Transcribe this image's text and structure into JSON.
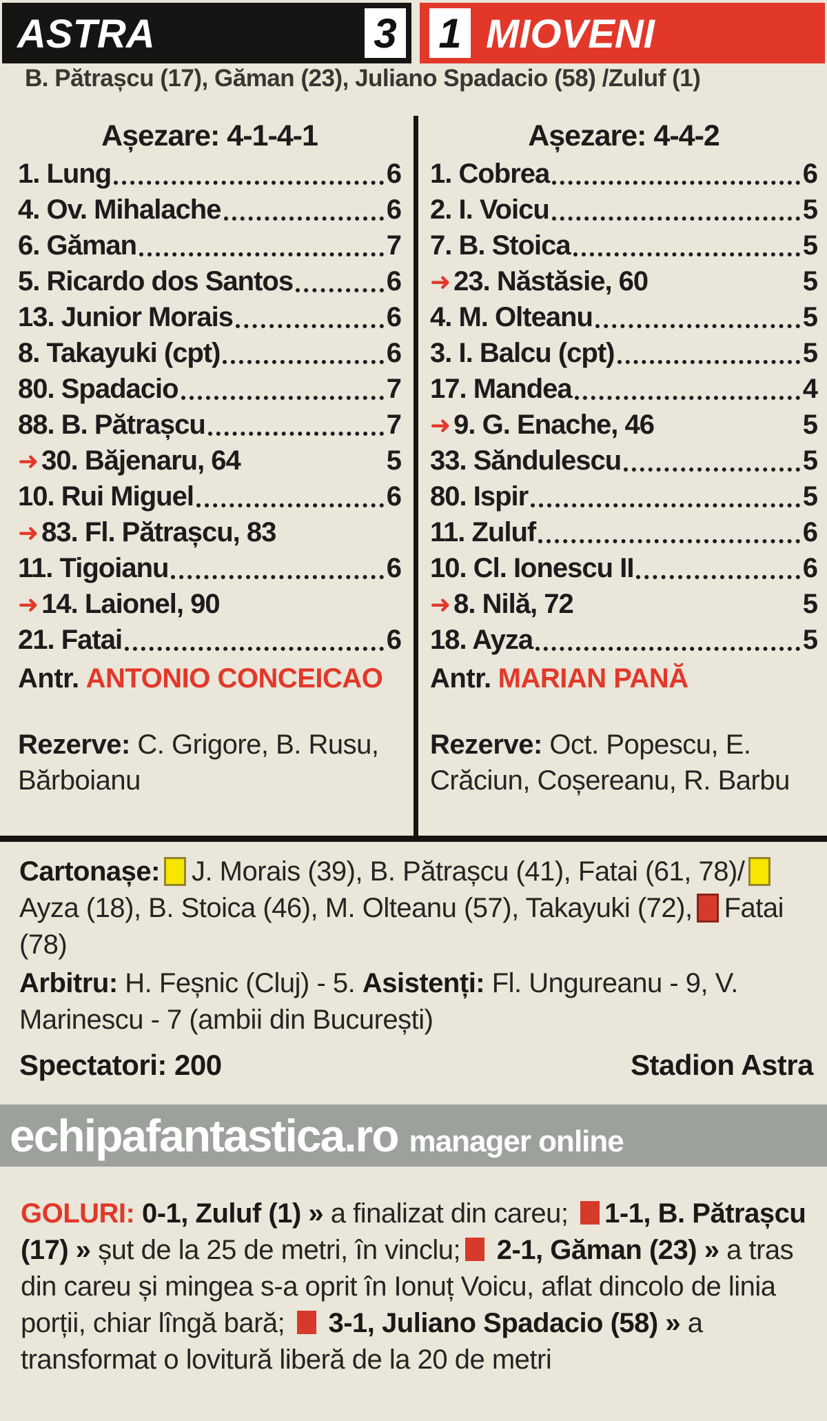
{
  "header": {
    "home": "ASTRA",
    "home_score": "3",
    "away": "MIOVENI",
    "away_score": "1",
    "scorers": "B. Pătrașcu (17), Găman (23), Juliano Spadacio (58) /Zuluf (1)",
    "home_bar_color": "#171513",
    "away_bar_color": "#e2382a"
  },
  "home_team": {
    "formation": "Așezare: 4-1-4-1",
    "players": [
      {
        "num": "1.",
        "name": "Lung",
        "rating": "6",
        "sub": false
      },
      {
        "num": "4.",
        "name": "Ov. Mihalache",
        "rating": "6",
        "sub": false
      },
      {
        "num": "6.",
        "name": "Găman",
        "rating": "7",
        "sub": false
      },
      {
        "num": "5.",
        "name": "Ricardo dos Santos",
        "rating": "6",
        "sub": false
      },
      {
        "num": "13.",
        "name": "Junior Morais",
        "rating": "6",
        "sub": false
      },
      {
        "num": "8.",
        "name": "Takayuki (cpt)",
        "rating": "6",
        "sub": false
      },
      {
        "num": "80.",
        "name": "Spadacio",
        "rating": "7",
        "sub": false
      },
      {
        "num": "88.",
        "name": "B. Pătrașcu",
        "rating": "7",
        "sub": false
      },
      {
        "num": "30.",
        "name": "Băjenaru, 64",
        "rating": "5",
        "sub": true
      },
      {
        "num": "10.",
        "name": "Rui Miguel",
        "rating": "6",
        "sub": false
      },
      {
        "num": "83.",
        "name": "Fl. Pătrașcu, 83",
        "rating": "",
        "sub": true
      },
      {
        "num": "11.",
        "name": "Tigoianu",
        "rating": "6",
        "sub": false
      },
      {
        "num": "14.",
        "name": "Laionel, 90",
        "rating": "",
        "sub": true
      },
      {
        "num": "21.",
        "name": "Fatai",
        "rating": "6",
        "sub": false
      }
    ],
    "coach_label": "Antr.",
    "coach": "ANTONIO CONCEICAO",
    "reserves_label": "Rezerve:",
    "reserves": "C. Grigore, B. Rusu, Bărboianu"
  },
  "away_team": {
    "formation": "Așezare: 4-4-2",
    "players": [
      {
        "num": "1.",
        "name": "Cobrea",
        "rating": "6",
        "sub": false
      },
      {
        "num": "2.",
        "name": "I. Voicu",
        "rating": "5",
        "sub": false
      },
      {
        "num": "7.",
        "name": "B. Stoica",
        "rating": "5",
        "sub": false
      },
      {
        "num": "23.",
        "name": "Năstăsie, 60",
        "rating": "5",
        "sub": true
      },
      {
        "num": "4.",
        "name": "M. Olteanu",
        "rating": "5",
        "sub": false
      },
      {
        "num": "3.",
        "name": "I. Balcu (cpt)",
        "rating": "5",
        "sub": false
      },
      {
        "num": "17.",
        "name": "Mandea",
        "rating": "4",
        "sub": false
      },
      {
        "num": "9.",
        "name": "G. Enache, 46",
        "rating": "5",
        "sub": true
      },
      {
        "num": "33.",
        "name": "Săndulescu",
        "rating": "5",
        "sub": false
      },
      {
        "num": "80.",
        "name": "Ispir",
        "rating": "5",
        "sub": false
      },
      {
        "num": "11.",
        "name": "Zuluf",
        "rating": "6",
        "sub": false
      },
      {
        "num": "10.",
        "name": "Cl. Ionescu II",
        "rating": "6",
        "sub": false
      },
      {
        "num": "8.",
        "name": "Nilă, 72",
        "rating": "5",
        "sub": true
      },
      {
        "num": "18.",
        "name": "Ayza",
        "rating": "5",
        "sub": false
      }
    ],
    "coach_label": "Antr.",
    "coach": "MARIAN PANĂ",
    "reserves_label": "Rezerve:",
    "reserves": "Oct. Popescu, E. Crăciun, Coșereanu, R. Barbu"
  },
  "cards": {
    "segments": [
      {
        "t": "label",
        "text": "Cartonașe:"
      },
      {
        "t": "yellow"
      },
      {
        "t": "text",
        "text": "J. Morais (39), B. Pătrașcu (41), Fatai (61, 78)/"
      },
      {
        "t": "yellow"
      },
      {
        "t": "text",
        "text": "Ayza (18), B. Stoica (46), M. Olteanu (57), Takayuki (72),"
      },
      {
        "t": "red"
      },
      {
        "t": "text",
        "text": "Fatai (78)"
      }
    ],
    "yellow_color": "#f6e600",
    "red_color": "#d63a2a"
  },
  "referee": {
    "segments": [
      {
        "t": "label",
        "text": "Arbitru: "
      },
      {
        "t": "text",
        "text": "H. Feșnic (Cluj) - 5. "
      },
      {
        "t": "label",
        "text": "Asistenți: "
      },
      {
        "t": "text",
        "text": "Fl. Ungureanu - 9, V. Marinescu - 7 (ambii din București)"
      }
    ]
  },
  "spectators": {
    "label": "Spectatori:",
    "value": "200",
    "stadium": "Stadion Astra"
  },
  "banner": {
    "site": "echipafantastica.ro",
    "tagline": "manager online",
    "background": "#9ca19b"
  },
  "goals": {
    "segments": [
      {
        "t": "goal-label",
        "text": "GOLURI: "
      },
      {
        "t": "bold",
        "text": "0-1, Zuluf (1) » "
      },
      {
        "t": "text",
        "text": "a finalizat din careu; "
      },
      {
        "t": "sq"
      },
      {
        "t": "bold",
        "text": "1-1, B. Pătrașcu (17) » "
      },
      {
        "t": "text",
        "text": "șut de la 25 de metri, în vinclu;"
      },
      {
        "t": "sq"
      },
      {
        "t": "bold",
        "text": " 2-1, Găman (23) » "
      },
      {
        "t": "text",
        "text": "a tras din careu și mingea s-a oprit în Ionuț Voicu, aflat dincolo de linia porții, chiar lîngă bară; "
      },
      {
        "t": "sq"
      },
      {
        "t": "bold",
        "text": " 3-1, Juliano Spadacio (58) » "
      },
      {
        "t": "text",
        "text": "a transformat o lovitură liberă de la 20 de metri"
      }
    ],
    "accent_color": "#e2382a"
  }
}
